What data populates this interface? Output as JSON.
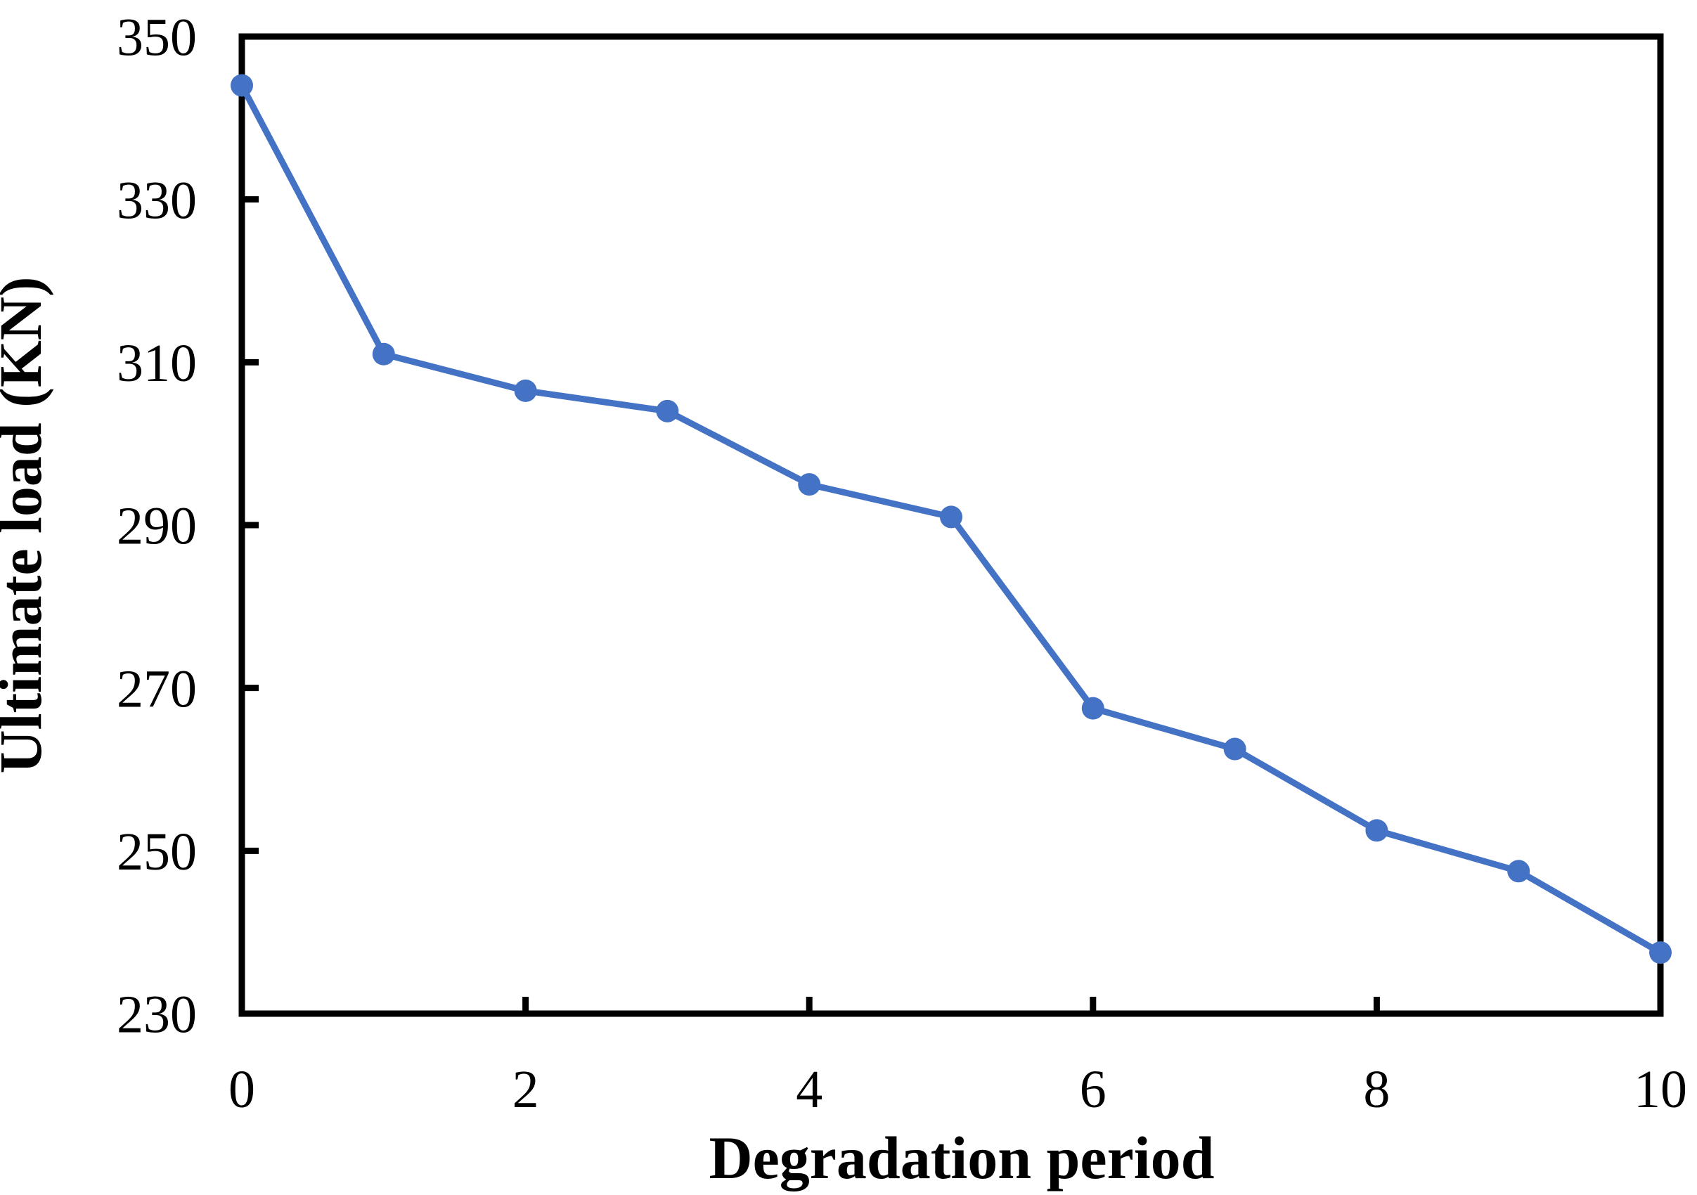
{
  "chart_data": {
    "type": "line",
    "title": "",
    "xlabel": "Degradation period",
    "ylabel": "Ultimate load (KN)",
    "x": [
      0,
      1,
      2,
      3,
      4,
      5,
      6,
      7,
      8,
      9,
      10
    ],
    "series": [
      {
        "name": "Ultimate load",
        "values": [
          344,
          311,
          306.5,
          304,
          295,
          291,
          267.5,
          262.5,
          252.5,
          247.5,
          237.5
        ]
      }
    ],
    "xlim": [
      0,
      10
    ],
    "ylim": [
      230,
      350
    ],
    "xticks": [
      0,
      2,
      4,
      6,
      8,
      10
    ],
    "yticks": [
      230,
      250,
      270,
      290,
      310,
      330,
      350
    ],
    "grid": false,
    "legend": "none",
    "marker": "circle",
    "line_color": "#4472C4",
    "marker_color": "#4472C4",
    "axis_color": "#000000",
    "background_color": "#FFFFFF"
  }
}
